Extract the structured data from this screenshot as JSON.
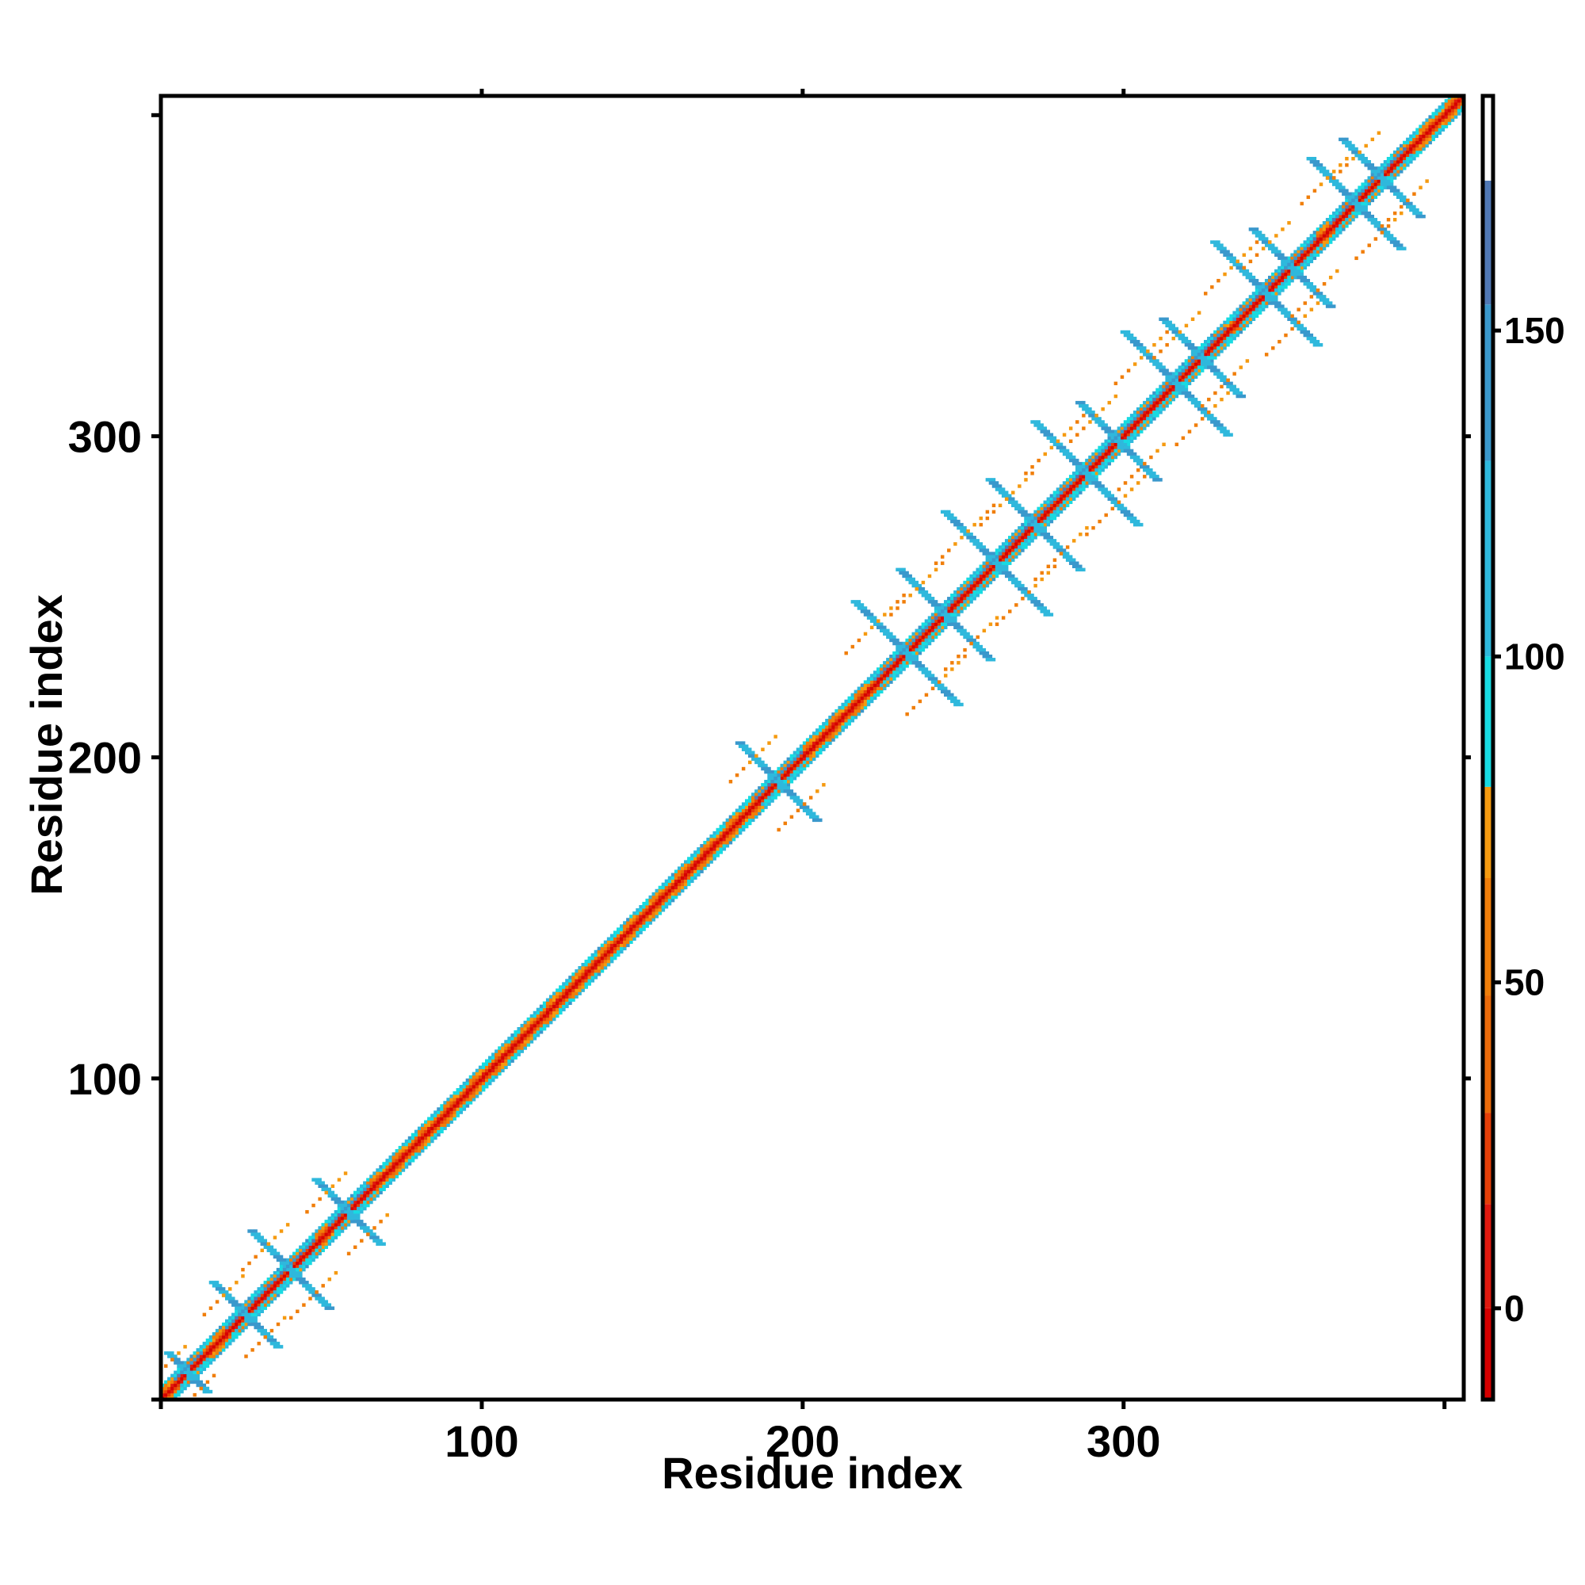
{
  "chart_data": {
    "type": "heatmap",
    "title": "",
    "xlabel": "Residue index",
    "ylabel": "Residue index",
    "xlim": [
      0,
      406
    ],
    "ylim": [
      0,
      406
    ],
    "x_ticks": [
      100,
      200,
      300
    ],
    "y_ticks": [
      100,
      200,
      300
    ],
    "n_residues": 406,
    "grid": false,
    "legend": "colorbar-right",
    "colorbar": {
      "range": [
        -14,
        186
      ],
      "ticks": [
        0,
        50,
        100,
        150
      ],
      "bands": [
        {
          "from": -14,
          "to": 0,
          "color": "#d50000"
        },
        {
          "from": 0,
          "to": 16,
          "color": "#e0190f"
        },
        {
          "from": 16,
          "to": 30,
          "color": "#e53f08"
        },
        {
          "from": 30,
          "to": 48,
          "color": "#ea6a0a"
        },
        {
          "from": 48,
          "to": 66,
          "color": "#f07e0a"
        },
        {
          "from": 66,
          "to": 80,
          "color": "#f59a10"
        },
        {
          "from": 80,
          "to": 100,
          "color": "#18dbe2"
        },
        {
          "from": 100,
          "to": 130,
          "color": "#2fb8dc"
        },
        {
          "from": 130,
          "to": 154,
          "color": "#3a98cc"
        },
        {
          "from": 154,
          "to": 173,
          "color": "#5078b4"
        },
        {
          "from": 173,
          "to": 186,
          "color": "#ffffff"
        }
      ]
    },
    "diagonal_band": {
      "half_width_residues": 4
    },
    "contact_regions": [
      {
        "i": 8,
        "j": 8,
        "size": 6
      },
      {
        "i": 26,
        "j": 26,
        "size": 10
      },
      {
        "i": 40,
        "j": 40,
        "size": 12
      },
      {
        "i": 58,
        "j": 58,
        "size": 10
      },
      {
        "i": 192,
        "j": 192,
        "size": 12
      },
      {
        "i": 232,
        "j": 232,
        "size": 16
      },
      {
        "i": 244,
        "j": 244,
        "size": 14
      },
      {
        "i": 260,
        "j": 260,
        "size": 16
      },
      {
        "i": 272,
        "j": 272,
        "size": 14
      },
      {
        "i": 288,
        "j": 288,
        "size": 16
      },
      {
        "i": 298,
        "j": 298,
        "size": 12
      },
      {
        "i": 316,
        "j": 316,
        "size": 16
      },
      {
        "i": 324,
        "j": 324,
        "size": 12
      },
      {
        "i": 344,
        "j": 344,
        "size": 16
      },
      {
        "i": 352,
        "j": 352,
        "size": 12
      },
      {
        "i": 372,
        "j": 372,
        "size": 14
      },
      {
        "i": 380,
        "j": 380,
        "size": 12
      }
    ]
  }
}
